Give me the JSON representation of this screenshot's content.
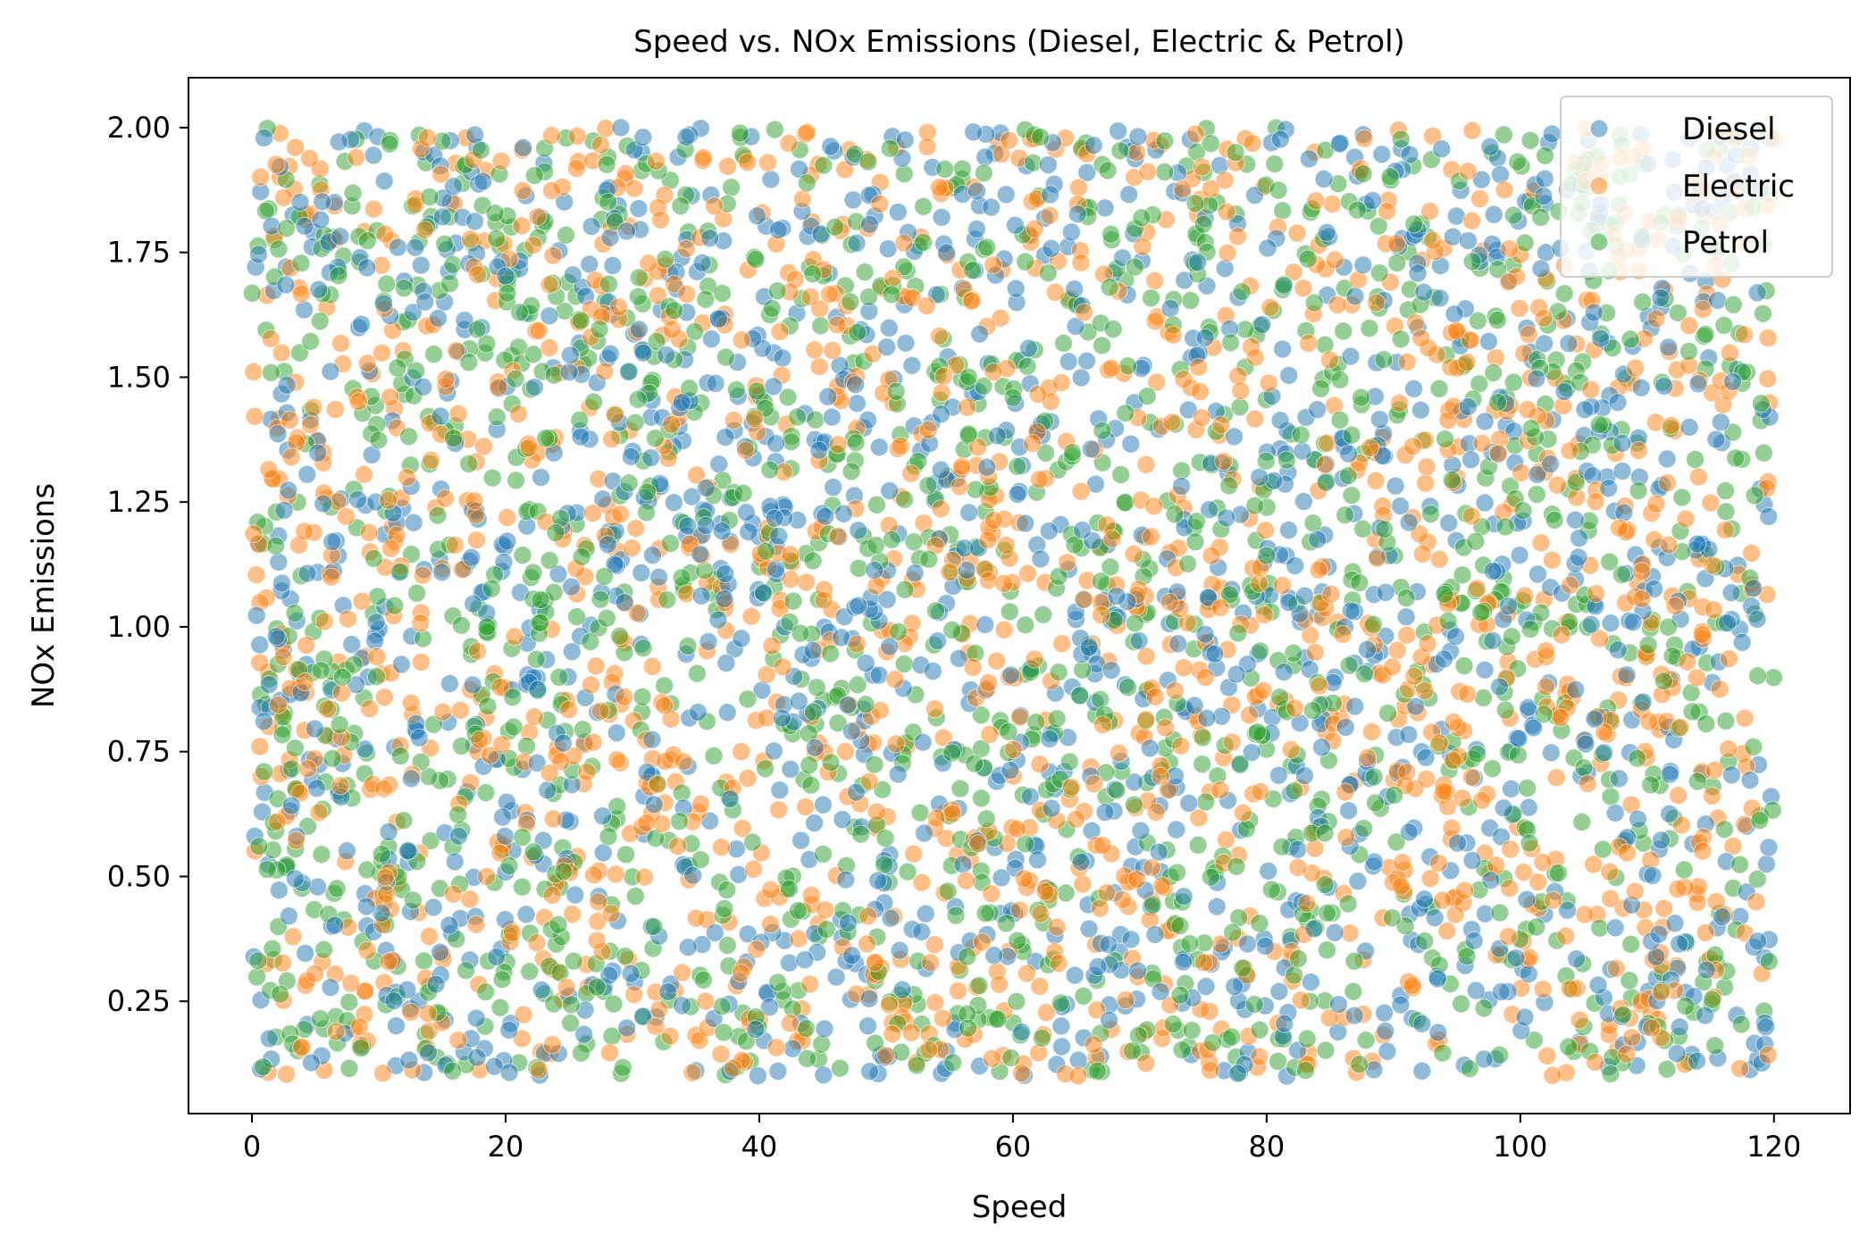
{
  "chart_data": {
    "type": "scatter",
    "title": "Speed vs. NOx Emissions (Diesel, Electric & Petrol)",
    "xlabel": "Speed",
    "ylabel": "NOx Emissions",
    "xlim": [
      -5,
      126
    ],
    "ylim": [
      0.025,
      2.1
    ],
    "x_ticks": [
      0,
      20,
      40,
      60,
      80,
      100,
      120
    ],
    "x_tick_labels": [
      "0",
      "20",
      "40",
      "60",
      "80",
      "100",
      "120"
    ],
    "y_ticks": [
      0.25,
      0.5,
      0.75,
      1.0,
      1.25,
      1.5,
      1.75,
      2.0
    ],
    "y_tick_labels": [
      "0.25",
      "0.50",
      "0.75",
      "1.00",
      "1.25",
      "1.50",
      "1.75",
      "2.00"
    ],
    "grid": false,
    "legend_position": "top-right",
    "point_alpha": 0.5,
    "series": [
      {
        "name": "Diesel",
        "color": "#1f77b4",
        "x_range": [
          0,
          120
        ],
        "y_range": [
          0.1,
          2.0
        ],
        "approx_points": 1600
      },
      {
        "name": "Electric",
        "color": "#ff7f0e",
        "x_range": [
          0,
          120
        ],
        "y_range": [
          0.1,
          2.0
        ],
        "approx_points": 1600
      },
      {
        "name": "Petrol",
        "color": "#2ca02c",
        "x_range": [
          0,
          120
        ],
        "y_range": [
          0.1,
          2.0
        ],
        "approx_points": 1600
      }
    ]
  }
}
